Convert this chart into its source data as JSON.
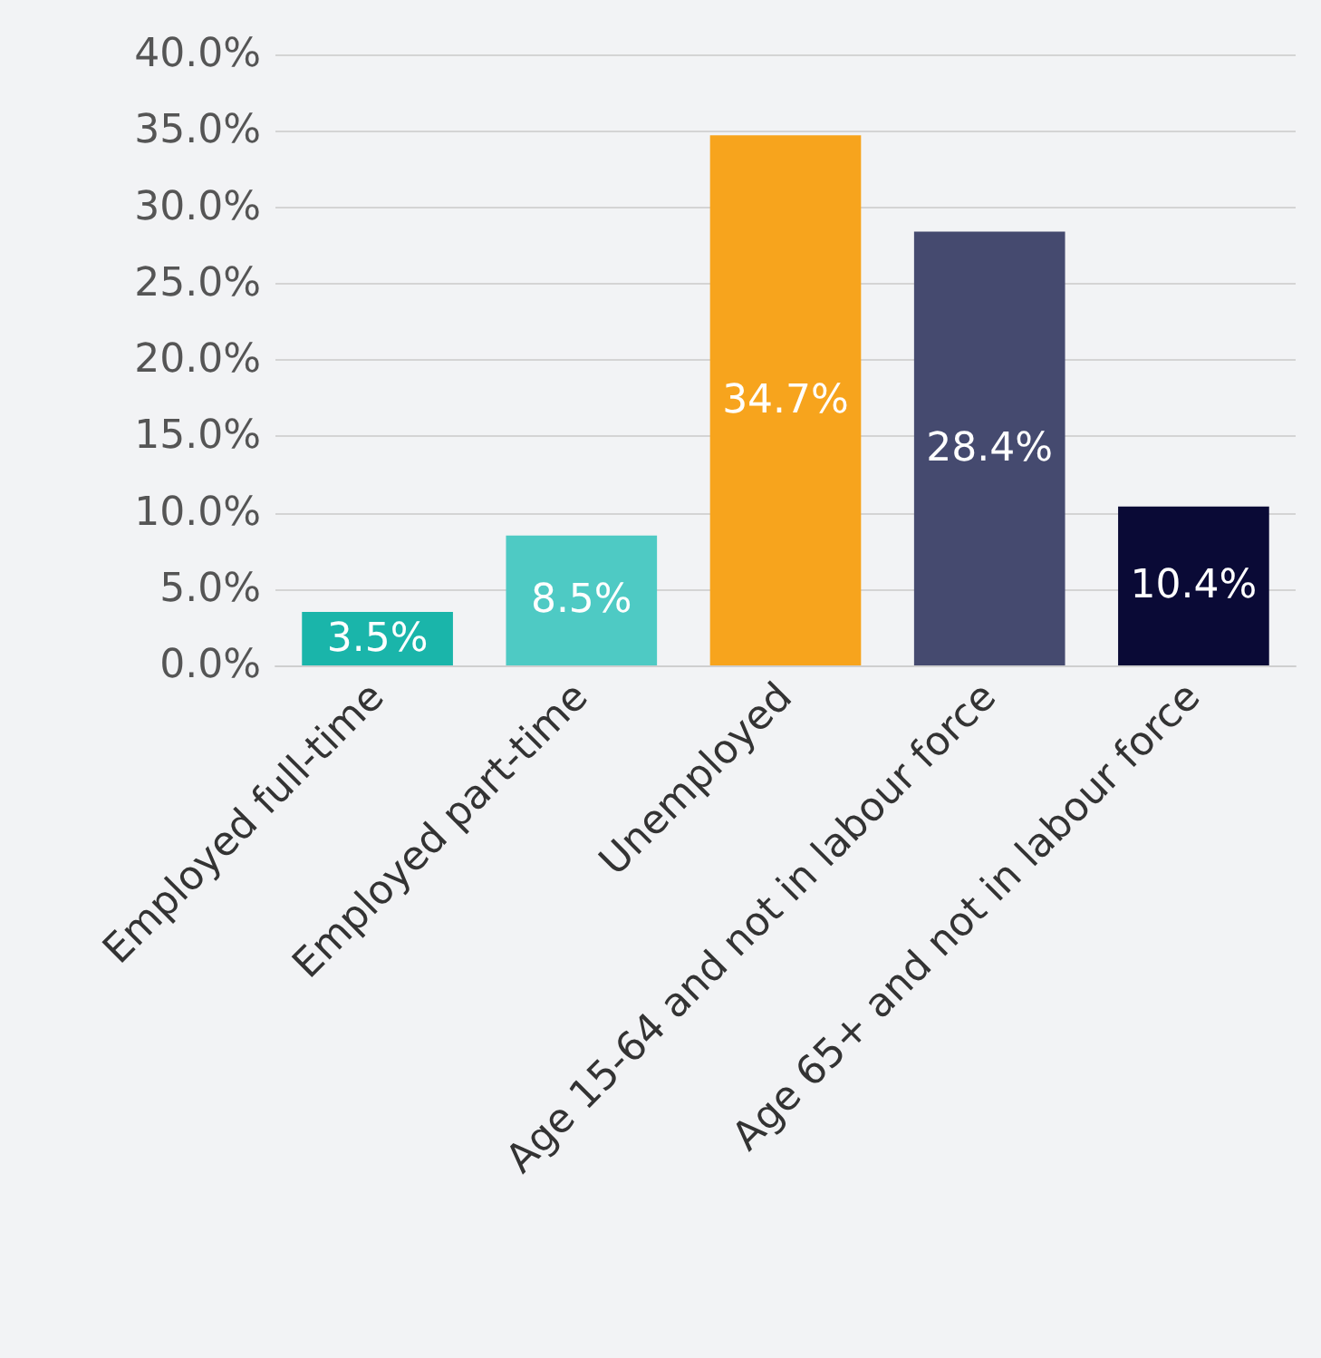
{
  "chart_data": {
    "type": "bar",
    "categories": [
      "Employed full-time",
      "Employed part-time",
      "Unemployed",
      "Age 15-64 and not in labour force",
      "Age 65+ and not in labour force"
    ],
    "values": [
      3.5,
      8.5,
      34.7,
      28.4,
      10.4
    ],
    "colors": [
      "#1ab5aa",
      "#4ecac4",
      "#f7a41d",
      "#454a6f",
      "#0a0a36"
    ],
    "value_labels": [
      "3.5%",
      "8.5%",
      "34.7%",
      "28.4%",
      "10.4%"
    ],
    "ylim": [
      0,
      40
    ],
    "yticks": [
      {
        "value": 0,
        "label": "0.0%"
      },
      {
        "value": 5,
        "label": "5.0%"
      },
      {
        "value": 10,
        "label": "10.0%"
      },
      {
        "value": 15,
        "label": "15.0%"
      },
      {
        "value": 20,
        "label": "20.0%"
      },
      {
        "value": 25,
        "label": "25.0%"
      },
      {
        "value": 30,
        "label": "30.0%"
      },
      {
        "value": 35,
        "label": "35.0%"
      },
      {
        "value": 40,
        "label": "40.0%"
      }
    ],
    "grid": "y"
  }
}
